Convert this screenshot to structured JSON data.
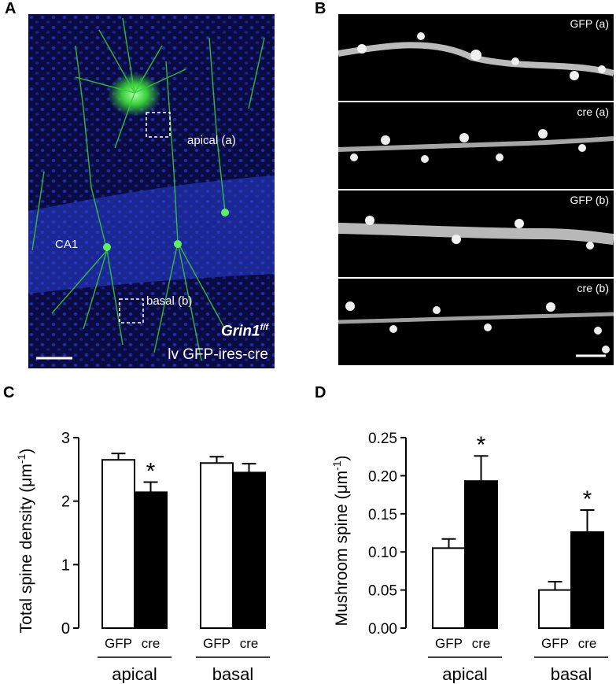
{
  "panels": {
    "a": "A",
    "b": "B",
    "c": "C",
    "d": "D"
  },
  "panel_a": {
    "label_apical": "apical (a)",
    "label_basal": "basal (b)",
    "label_ca1": "CA1",
    "genotype_main": "Grin1",
    "genotype_sup": "f/f",
    "vector": "lv GFP-ires-cre",
    "colors": {
      "background": "#0a0a3a",
      "nuclei": "#1f33c8",
      "neurons": "#3ad13a"
    }
  },
  "panel_b": {
    "strips": [
      {
        "label": "GFP (a)"
      },
      {
        "label": "cre (a)"
      },
      {
        "label": "GFP (b)"
      },
      {
        "label": "cre (b)"
      }
    ]
  },
  "chart_data": [
    {
      "type": "bar",
      "panel": "C",
      "title": "",
      "ylabel": "Total spine density (μm",
      "ylabel_sup": "-1",
      "ylabel_close": ")",
      "ylim": [
        0,
        3
      ],
      "yticks": [
        "0",
        "1",
        "2",
        "3"
      ],
      "groups": [
        "apical",
        "basal"
      ],
      "categories": [
        "GFP",
        "cre"
      ],
      "series": [
        {
          "name": "GFP",
          "values": [
            2.65,
            2.6
          ],
          "errors": [
            0.1,
            0.1
          ],
          "fill": "#ffffff"
        },
        {
          "name": "cre",
          "values": [
            2.14,
            2.45
          ],
          "errors": [
            0.16,
            0.14
          ],
          "fill": "#000000"
        }
      ],
      "annotations": [
        {
          "text": "*",
          "group": "apical",
          "series": "cre"
        }
      ],
      "grid": false
    },
    {
      "type": "bar",
      "panel": "D",
      "title": "",
      "ylabel": "Mushroom spine (μm",
      "ylabel_sup": "-1",
      "ylabel_close": ")",
      "ylim": [
        0,
        0.25
      ],
      "yticks": [
        "0.00",
        "0.05",
        "0.10",
        "0.15",
        "0.20",
        "0.25"
      ],
      "groups": [
        "apical",
        "basal"
      ],
      "categories": [
        "GFP",
        "cre"
      ],
      "series": [
        {
          "name": "GFP",
          "values": [
            0.105,
            0.05
          ],
          "errors": [
            0.012,
            0.011
          ],
          "fill": "#ffffff"
        },
        {
          "name": "cre",
          "values": [
            0.193,
            0.126
          ],
          "errors": [
            0.033,
            0.029
          ],
          "fill": "#000000"
        }
      ],
      "annotations": [
        {
          "text": "*",
          "group": "apical",
          "series": "cre"
        },
        {
          "text": "*",
          "group": "basal",
          "series": "cre"
        }
      ],
      "grid": false
    }
  ]
}
